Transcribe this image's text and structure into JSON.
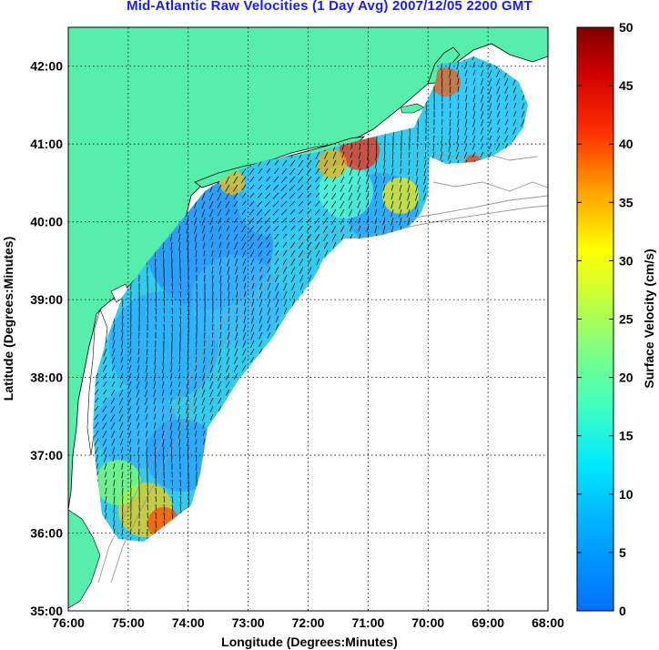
{
  "title": "Mid-Atlantic Raw Velocities (1 Day Avg) 2007/12/05 2200 GMT",
  "x_axis": {
    "label": "Longitude (Degrees:Minutes)",
    "ticks": [
      "76:00",
      "75:00",
      "74:00",
      "73:00",
      "72:00",
      "71:00",
      "70:00",
      "69:00",
      "68:00"
    ]
  },
  "y_axis": {
    "label": "Latitude (Degrees:Minutes)",
    "ticks": [
      "35:00",
      "36:00",
      "37:00",
      "38:00",
      "39:00",
      "40:00",
      "41:00",
      "42:00"
    ]
  },
  "colorbar": {
    "label": "Surface Velocity (cm/s)",
    "ticks": [
      "0",
      "5",
      "10",
      "15",
      "20",
      "25",
      "30",
      "35",
      "40",
      "45",
      "50"
    ],
    "range": [
      0,
      50
    ]
  },
  "map_extent": {
    "lon": [
      -76,
      -68
    ],
    "lat": [
      35,
      42.5
    ]
  },
  "colors": {
    "land": "#55eeaa",
    "coast_outline": "#000000",
    "bathymetry": "#999999",
    "title": "#1a1aff"
  }
}
